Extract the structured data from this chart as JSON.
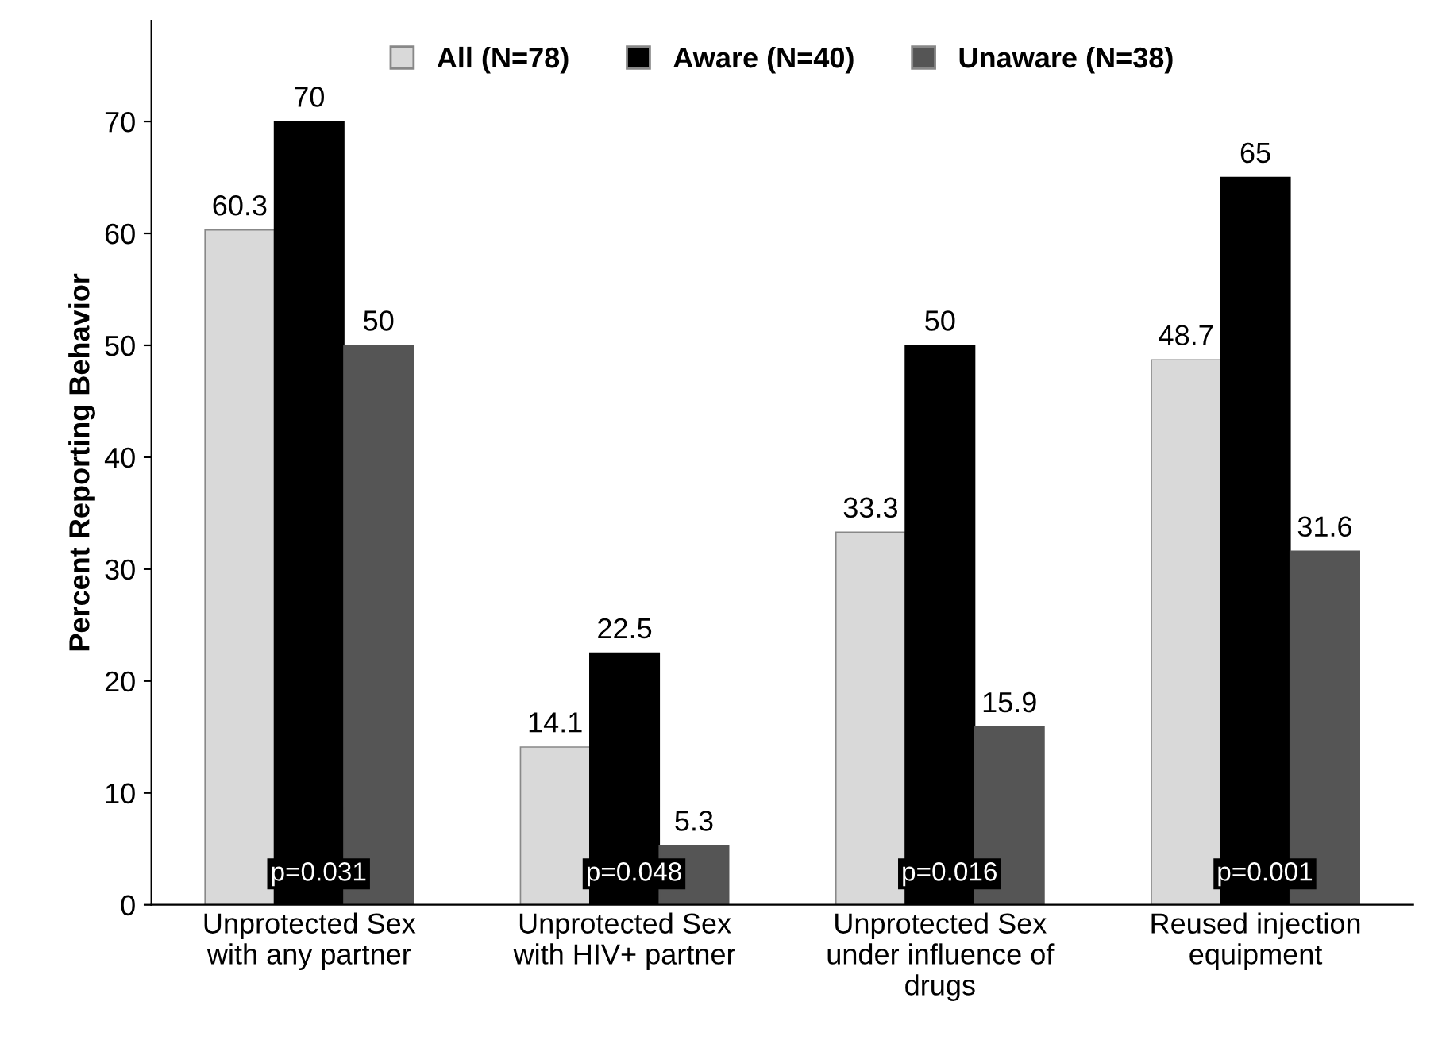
{
  "chart_data": {
    "type": "bar",
    "ylabel": "Percent Reporting Behavior",
    "categories": [
      "Unprotected Sex\nwith any partner",
      "Unprotected Sex\nwith HIV+ partner",
      "Unprotected Sex\nunder influence of\ndrugs",
      "Reused injection\nequipment"
    ],
    "series": [
      {
        "name": "All (N=78)",
        "color": "#d9d9d9",
        "values": [
          60.3,
          14.1,
          33.3,
          48.7
        ]
      },
      {
        "name": "Aware (N=40)",
        "color": "#000000",
        "values": [
          70,
          22.5,
          50,
          65
        ]
      },
      {
        "name": "Unaware (N=38)",
        "color": "#555555",
        "values": [
          50,
          5.3,
          15.9,
          31.6
        ]
      }
    ],
    "ylim": [
      0,
      79
    ],
    "yticks": [
      0,
      10,
      20,
      30,
      40,
      50,
      60,
      70
    ],
    "data_labels": true,
    "grid": false,
    "legend": "top",
    "annotations": [
      "p=0.031",
      "p=0.048",
      "p=0.016",
      "p=0.001"
    ]
  }
}
